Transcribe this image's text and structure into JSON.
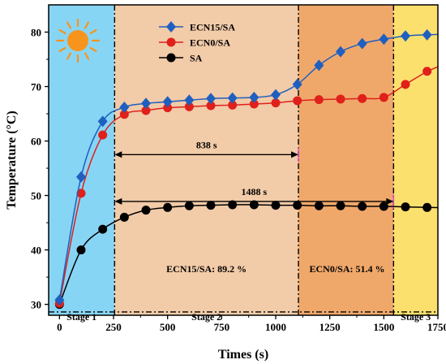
{
  "chart_data": {
    "type": "line",
    "xlabel": "Times (s)",
    "ylabel": "Temperature (°C)",
    "xlim": [
      -50,
      1750
    ],
    "ylim": [
      28,
      85
    ],
    "xticks": [
      0,
      250,
      500,
      750,
      1000,
      1250,
      1500,
      1750
    ],
    "yticks": [
      30,
      40,
      50,
      60,
      70,
      80
    ],
    "legend_position": "top-center",
    "series": [
      {
        "name": "ECN15/SA",
        "color": "#1f5fbf",
        "marker": "diamond",
        "x": [
          0,
          100,
          200,
          300,
          400,
          500,
          600,
          700,
          800,
          900,
          1000,
          1100,
          1200,
          1300,
          1400,
          1500,
          1600,
          1700
        ],
        "y": [
          30.8,
          53.4,
          63.6,
          66.2,
          66.9,
          67.2,
          67.5,
          67.8,
          67.9,
          68.0,
          68.5,
          70.4,
          73.9,
          76.4,
          77.9,
          78.7,
          79.3,
          79.5
        ]
      },
      {
        "name": "ECN0/SA",
        "color": "#e0201b",
        "marker": "circle",
        "x": [
          0,
          100,
          200,
          300,
          400,
          500,
          600,
          700,
          800,
          900,
          1000,
          1100,
          1200,
          1300,
          1400,
          1500,
          1600,
          1700
        ],
        "y": [
          30.2,
          50.4,
          61.1,
          64.9,
          65.6,
          66.1,
          66.3,
          66.5,
          66.6,
          66.8,
          67.0,
          67.4,
          67.6,
          67.7,
          67.8,
          68.0,
          70.4,
          72.8
        ]
      },
      {
        "name": "SA",
        "color": "#000000",
        "marker": "circle",
        "x": [
          0,
          100,
          200,
          300,
          400,
          500,
          600,
          700,
          800,
          900,
          1000,
          1100,
          1200,
          1300,
          1400,
          1500,
          1600,
          1700
        ],
        "y": [
          30.0,
          40.0,
          43.8,
          46.0,
          47.3,
          47.8,
          48.1,
          48.2,
          48.3,
          48.3,
          48.2,
          48.2,
          48.1,
          48.1,
          48.0,
          48.0,
          47.9,
          47.8
        ]
      }
    ],
    "stages": [
      {
        "label": "Stage 1",
        "x_start": -50,
        "x_end": 255,
        "color": "#87d5f5"
      },
      {
        "label": "Stage 2",
        "x_start": 255,
        "x_end": 1105,
        "color": "#f2cba8"
      },
      {
        "label": "",
        "x_start": 1105,
        "x_end": 1545,
        "color": "#f0a86a"
      },
      {
        "label": "Stage 3",
        "x_start": 1545,
        "x_end": 1750,
        "color": "#fbe06e"
      }
    ],
    "stage_label_y": 28.9,
    "stage_divider_y": 28.6,
    "annotations": [
      {
        "text": "838 s",
        "x_start": 255,
        "x_end": 1105,
        "y": 57.5
      },
      {
        "text": "1488 s",
        "x_start": 255,
        "x_end": 1545,
        "y": 48.9
      }
    ],
    "efficiency_labels": [
      {
        "text": "ECN15/SA: 89.2 %",
        "x": 680,
        "y": 36.5
      },
      {
        "text": "ECN0/SA: 51.4 %",
        "x": 1330,
        "y": 36.5
      }
    ]
  }
}
